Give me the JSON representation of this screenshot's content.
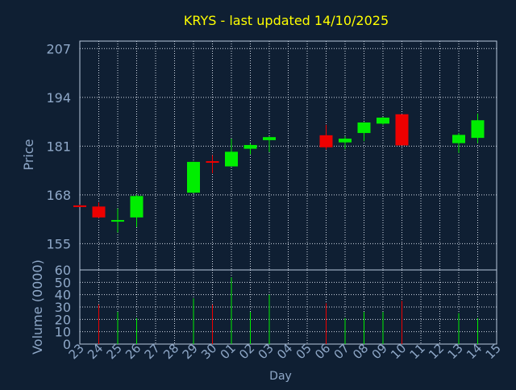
{
  "title": "KRYS - last updated 14/10/2025",
  "colors": {
    "background": "#0f1f33",
    "title": "#ffff00",
    "axis_text": "#8fa8c8",
    "frame": "#b8c8dc",
    "grid": "#d0d8e4",
    "up": "#00ee00",
    "down": "#ee0000"
  },
  "chart_data": [
    {
      "type": "candlestick",
      "ylabel": "Price",
      "ylim": [
        148,
        209
      ],
      "yticks": [
        155,
        168,
        181,
        194,
        207
      ],
      "grid": true,
      "candles": [
        {
          "day": "23",
          "open": 165.2,
          "high": 165.4,
          "low": 164.9,
          "close": 164.9
        },
        {
          "day": "24",
          "open": 164.9,
          "high": 166.0,
          "low": 161.8,
          "close": 162.0
        },
        {
          "day": "25",
          "open": 160.9,
          "high": 164.4,
          "low": 158.0,
          "close": 161.3
        },
        {
          "day": "26",
          "open": 162.0,
          "high": 168.0,
          "low": 159.4,
          "close": 167.7
        },
        {
          "day": "29",
          "open": 168.6,
          "high": 176.9,
          "low": 168.4,
          "close": 176.8
        },
        {
          "day": "30",
          "open": 177.0,
          "high": 178.6,
          "low": 173.8,
          "close": 176.7
        },
        {
          "day": "01",
          "open": 175.6,
          "high": 183.0,
          "low": 175.6,
          "close": 179.5
        },
        {
          "day": "02",
          "open": 180.3,
          "high": 181.7,
          "low": 178.8,
          "close": 181.3
        },
        {
          "day": "03",
          "open": 182.6,
          "high": 183.6,
          "low": 179.4,
          "close": 183.4
        },
        {
          "day": "06",
          "open": 183.9,
          "high": 186.7,
          "low": 180.1,
          "close": 180.7
        },
        {
          "day": "07",
          "open": 182.0,
          "high": 183.6,
          "low": 180.2,
          "close": 183.0
        },
        {
          "day": "08",
          "open": 184.5,
          "high": 187.4,
          "low": 182.3,
          "close": 187.3
        },
        {
          "day": "09",
          "open": 187.0,
          "high": 188.8,
          "low": 186.7,
          "close": 188.6
        },
        {
          "day": "10",
          "open": 189.5,
          "high": 189.5,
          "low": 181.2,
          "close": 181.2
        },
        {
          "day": "13",
          "open": 181.8,
          "high": 184.5,
          "low": 179.2,
          "close": 184.0
        },
        {
          "day": "14",
          "open": 183.2,
          "high": 189.7,
          "low": 181.8,
          "close": 187.9
        }
      ]
    },
    {
      "type": "bar",
      "xlabel": "Day",
      "ylabel": "Volume (0000)",
      "ylim": [
        0,
        60
      ],
      "yticks": [
        0,
        10,
        20,
        30,
        40,
        50,
        60
      ],
      "grid": true,
      "categories": [
        "23",
        "24",
        "25",
        "26",
        "27",
        "28",
        "29",
        "30",
        "01",
        "02",
        "03",
        "04",
        "05",
        "06",
        "07",
        "08",
        "09",
        "10",
        "11",
        "12",
        "13",
        "14",
        "15"
      ],
      "bars": [
        {
          "day": "24",
          "value": 32,
          "direction": "down"
        },
        {
          "day": "25",
          "value": 26,
          "direction": "up"
        },
        {
          "day": "26",
          "value": 21,
          "direction": "up"
        },
        {
          "day": "29",
          "value": 37,
          "direction": "up"
        },
        {
          "day": "30",
          "value": 32,
          "direction": "down"
        },
        {
          "day": "01",
          "value": 54,
          "direction": "up"
        },
        {
          "day": "02",
          "value": 26,
          "direction": "up"
        },
        {
          "day": "03",
          "value": 40,
          "direction": "up"
        },
        {
          "day": "06",
          "value": 33,
          "direction": "down"
        },
        {
          "day": "07",
          "value": 21,
          "direction": "up"
        },
        {
          "day": "08",
          "value": 26,
          "direction": "up"
        },
        {
          "day": "09",
          "value": 26,
          "direction": "up"
        },
        {
          "day": "10",
          "value": 35,
          "direction": "down"
        },
        {
          "day": "13",
          "value": 25,
          "direction": "up"
        },
        {
          "day": "14",
          "value": 21,
          "direction": "up"
        }
      ]
    }
  ]
}
